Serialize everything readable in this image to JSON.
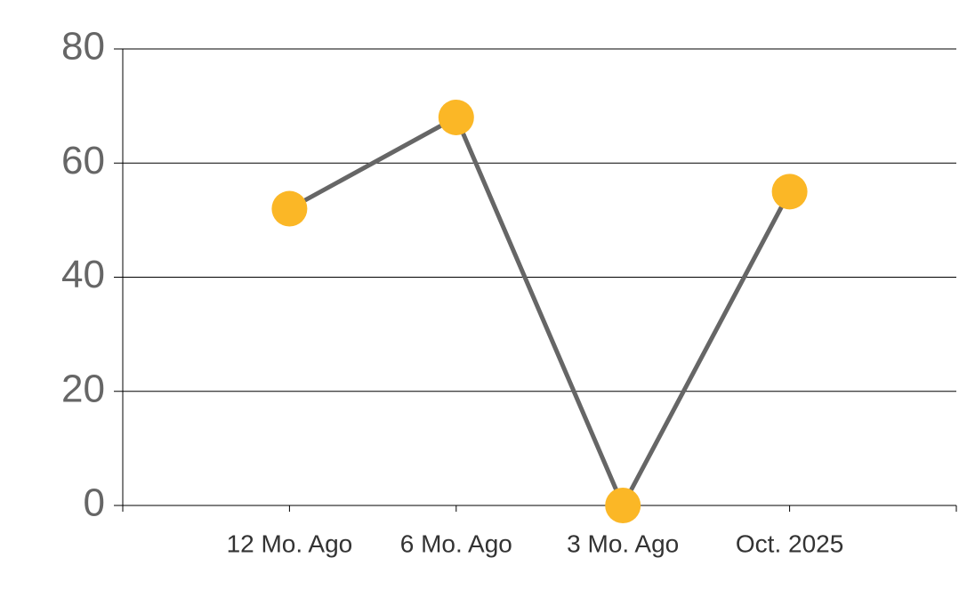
{
  "chart_data": {
    "type": "line",
    "categories": [
      "12 Mo. Ago",
      "6 Mo. Ago",
      "3 Mo. Ago",
      "Oct. 2025"
    ],
    "series": [
      {
        "values": [
          52,
          68,
          0,
          55
        ],
        "color": "#666666",
        "marker_color": "#fbb726"
      }
    ],
    "ylim": [
      0,
      80
    ],
    "yticks": [
      0,
      20,
      40,
      60,
      80
    ],
    "grid": true
  }
}
